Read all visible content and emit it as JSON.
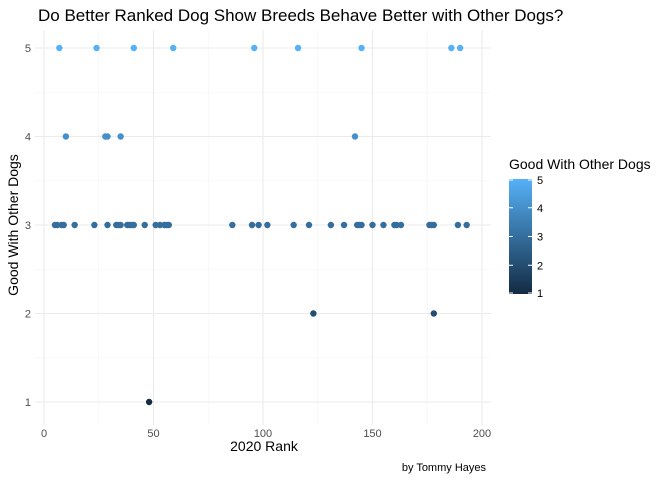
{
  "chart_data": {
    "type": "scatter",
    "title": "Do Better Ranked Dog Show Breeds Behave Better with Other Dogs?",
    "xlabel": "2020 Rank",
    "ylabel": "Good With Other Dogs",
    "caption": "by Tommy Hayes",
    "xlim": [
      0,
      200
    ],
    "ylim": [
      1,
      5
    ],
    "xticks": [
      0,
      50,
      100,
      150,
      200
    ],
    "yticks": [
      1,
      2,
      3,
      4,
      5
    ],
    "grid": true,
    "legend": {
      "title": "Good With Other Dogs",
      "placement": "right",
      "type": "colorbar",
      "range": [
        1,
        5
      ],
      "ticks": [
        1,
        2,
        3,
        4,
        5
      ],
      "low_color": "#132B43",
      "high_color": "#56B1F7"
    },
    "points": [
      {
        "x": 7,
        "y": 5
      },
      {
        "x": 24,
        "y": 5
      },
      {
        "x": 41,
        "y": 5
      },
      {
        "x": 59,
        "y": 5
      },
      {
        "x": 96,
        "y": 5
      },
      {
        "x": 116,
        "y": 5
      },
      {
        "x": 145,
        "y": 5
      },
      {
        "x": 186,
        "y": 5
      },
      {
        "x": 190,
        "y": 5
      },
      {
        "x": 10,
        "y": 4
      },
      {
        "x": 28,
        "y": 4
      },
      {
        "x": 29,
        "y": 4
      },
      {
        "x": 35,
        "y": 4
      },
      {
        "x": 142,
        "y": 4
      },
      {
        "x": 5,
        "y": 3
      },
      {
        "x": 6,
        "y": 3
      },
      {
        "x": 8,
        "y": 3
      },
      {
        "x": 9,
        "y": 3
      },
      {
        "x": 14,
        "y": 3
      },
      {
        "x": 23,
        "y": 3
      },
      {
        "x": 29,
        "y": 3
      },
      {
        "x": 33,
        "y": 3
      },
      {
        "x": 34,
        "y": 3
      },
      {
        "x": 35,
        "y": 3
      },
      {
        "x": 38,
        "y": 3
      },
      {
        "x": 39,
        "y": 3
      },
      {
        "x": 40,
        "y": 3
      },
      {
        "x": 41,
        "y": 3
      },
      {
        "x": 46,
        "y": 3
      },
      {
        "x": 51,
        "y": 3
      },
      {
        "x": 53,
        "y": 3
      },
      {
        "x": 55,
        "y": 3
      },
      {
        "x": 56,
        "y": 3
      },
      {
        "x": 57,
        "y": 3
      },
      {
        "x": 86,
        "y": 3
      },
      {
        "x": 95,
        "y": 3
      },
      {
        "x": 98,
        "y": 3
      },
      {
        "x": 102,
        "y": 3
      },
      {
        "x": 114,
        "y": 3
      },
      {
        "x": 121,
        "y": 3
      },
      {
        "x": 131,
        "y": 3
      },
      {
        "x": 137,
        "y": 3
      },
      {
        "x": 143,
        "y": 3
      },
      {
        "x": 144,
        "y": 3
      },
      {
        "x": 145,
        "y": 3
      },
      {
        "x": 150,
        "y": 3
      },
      {
        "x": 155,
        "y": 3
      },
      {
        "x": 160,
        "y": 3
      },
      {
        "x": 161,
        "y": 3
      },
      {
        "x": 163,
        "y": 3
      },
      {
        "x": 176,
        "y": 3
      },
      {
        "x": 177,
        "y": 3
      },
      {
        "x": 178,
        "y": 3
      },
      {
        "x": 189,
        "y": 3
      },
      {
        "x": 193,
        "y": 3
      },
      {
        "x": 123,
        "y": 2
      },
      {
        "x": 178,
        "y": 2
      },
      {
        "x": 48,
        "y": 1
      }
    ]
  }
}
